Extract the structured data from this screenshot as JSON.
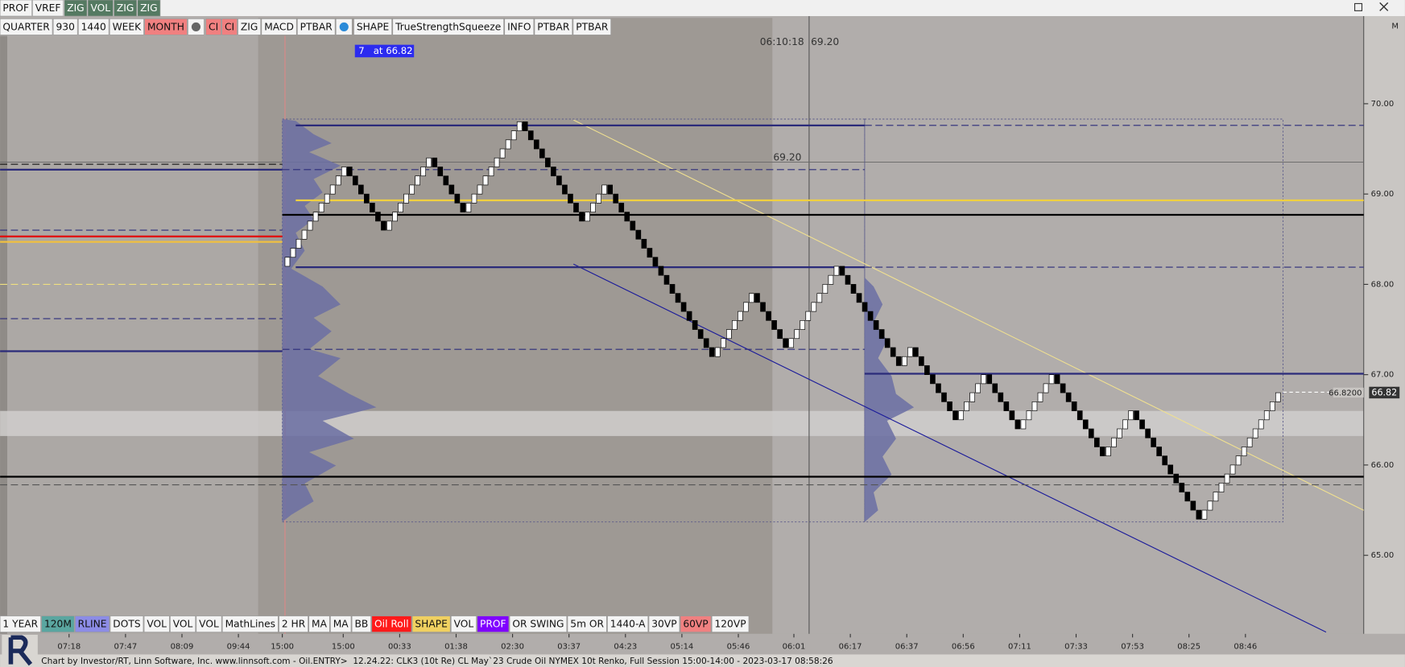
{
  "toolbar_top": [
    {
      "label": "PROF",
      "color": "#f4f4f4"
    },
    {
      "label": "VREF",
      "color": "#f4f4f4"
    },
    {
      "label": "ZIG",
      "color": "#557a62"
    },
    {
      "label": "VOL",
      "color": "#557a62"
    },
    {
      "label": "ZIG",
      "color": "#557a62"
    },
    {
      "label": "ZIG",
      "color": "#557a62"
    }
  ],
  "toolbar_second": [
    {
      "label": "QUARTER",
      "color": "#f4f4f4"
    },
    {
      "label": "930",
      "color": "#f4f4f4"
    },
    {
      "label": "1440",
      "color": "#f4f4f4"
    },
    {
      "label": "WEEK",
      "color": "#f4f4f4"
    },
    {
      "label": "MONTH",
      "color": "#f08080"
    },
    {
      "label": "CI",
      "color": "#f08080"
    },
    {
      "label": "CI",
      "color": "#f08080"
    },
    {
      "label": "ZIG",
      "color": "#f4f4f4"
    },
    {
      "label": "MACD",
      "color": "#f4f4f4"
    },
    {
      "label": "PTBAR",
      "color": "#f4f4f4"
    },
    {
      "label": "SHAPE",
      "color": "#f4f4f4"
    },
    {
      "label": "TrueStrengthSqueeze",
      "color": "#f4f4f4"
    },
    {
      "label": "INFO",
      "color": "#f4f4f4"
    },
    {
      "label": "PTBAR",
      "color": "#f4f4f4"
    },
    {
      "label": "PTBAR",
      "color": "#f4f4f4"
    }
  ],
  "toolbar_bottom": [
    {
      "label": "1 YEAR",
      "color": "#f4f4f4"
    },
    {
      "label": "120M",
      "color": "#5aa6a0"
    },
    {
      "label": "RLINE",
      "color": "#8c8ce6"
    },
    {
      "label": "DOTS",
      "color": "#f4f4f4"
    },
    {
      "label": "VOL",
      "color": "#f4f4f4"
    },
    {
      "label": "VOL",
      "color": "#f4f4f4"
    },
    {
      "label": "VOL",
      "color": "#f4f4f4"
    },
    {
      "label": "MathLines",
      "color": "#f4f4f4"
    },
    {
      "label": "2 HR",
      "color": "#f4f4f4"
    },
    {
      "label": "MA",
      "color": "#f4f4f4"
    },
    {
      "label": "MA",
      "color": "#f4f4f4"
    },
    {
      "label": "BB",
      "color": "#f4f4f4"
    },
    {
      "label": "Oil Roll",
      "color": "#ff1a1a"
    },
    {
      "label": "SHAPE",
      "color": "#f0d060"
    },
    {
      "label": "VOL",
      "color": "#f4f4f4"
    },
    {
      "label": "PROF",
      "color": "#8000ff"
    },
    {
      "label": "OR SWING",
      "color": "#f4f4f4"
    },
    {
      "label": "5m OR",
      "color": "#f4f4f4"
    },
    {
      "label": "1440-A",
      "color": "#f4f4f4"
    },
    {
      "label": "30VP",
      "color": "#f4f4f4"
    },
    {
      "label": "60VP",
      "color": "#f08080"
    },
    {
      "label": "120VP",
      "color": "#f4f4f4"
    }
  ],
  "corner_label": "M",
  "status_bar": "Chart by Investor/RT, Linn Software, Inc. www.linnsoft.com - Oil.ENTRY>  12.24.22: CLK3 (10t Re) CL May`23 Crude Oil NYMEX 10t Renko, Full Session 15:00-14:00 - 2023-03-17 08:58:26",
  "chart_data": {
    "type": "renko",
    "up_color": "#ffffff",
    "down_color": "#000000",
    "bricks": [
      68.3,
      68.4,
      68.5,
      68.6,
      68.7,
      68.8,
      68.9,
      69.0,
      69.1,
      69.2,
      69.3,
      69.2,
      69.1,
      69.0,
      68.9,
      68.8,
      68.7,
      68.6,
      68.7,
      68.8,
      68.9,
      69.0,
      69.1,
      69.2,
      69.3,
      69.4,
      69.3,
      69.2,
      69.1,
      69.0,
      68.9,
      68.8,
      68.9,
      69.0,
      69.1,
      69.2,
      69.3,
      69.4,
      69.5,
      69.6,
      69.7,
      69.8,
      69.7,
      69.6,
      69.5,
      69.4,
      69.3,
      69.2,
      69.1,
      69.0,
      68.9,
      68.8,
      68.7,
      68.8,
      68.9,
      69.0,
      69.1,
      69.0,
      68.9,
      68.8,
      68.7,
      68.6,
      68.5,
      68.4,
      68.3,
      68.2,
      68.1,
      68.0,
      67.9,
      67.8,
      67.7,
      67.6,
      67.5,
      67.4,
      67.3,
      67.2,
      67.3,
      67.4,
      67.5,
      67.6,
      67.7,
      67.8,
      67.9,
      67.8,
      67.7,
      67.6,
      67.5,
      67.4,
      67.3,
      67.4,
      67.5,
      67.6,
      67.7,
      67.8,
      67.9,
      68.0,
      68.1,
      68.2,
      68.1,
      68.0,
      67.9,
      67.8,
      67.7,
      67.6,
      67.5,
      67.4,
      67.3,
      67.2,
      67.1,
      67.2,
      67.3,
      67.2,
      67.1,
      67.0,
      66.9,
      66.8,
      66.7,
      66.6,
      66.5,
      66.6,
      66.7,
      66.8,
      66.9,
      67.0,
      66.9,
      66.8,
      66.7,
      66.6,
      66.5,
      66.4,
      66.5,
      66.6,
      66.7,
      66.8,
      66.9,
      67.0,
      66.9,
      66.8,
      66.7,
      66.6,
      66.5,
      66.4,
      66.3,
      66.2,
      66.1,
      66.2,
      66.3,
      66.4,
      66.5,
      66.6,
      66.5,
      66.4,
      66.3,
      66.2,
      66.1,
      66.0,
      65.9,
      65.8,
      65.7,
      65.6,
      65.5,
      65.4,
      65.5,
      65.6,
      65.7,
      65.8,
      65.9,
      66.0,
      66.1,
      66.2,
      66.3,
      66.4,
      66.5,
      66.6,
      66.7,
      66.8
    ],
    "ylim": [
      64.13,
      70.97
    ],
    "yticks": [
      {
        "value": 65,
        "label": "65.00"
      },
      {
        "value": 66,
        "label": "66.00"
      },
      {
        "value": 67,
        "label": "67.00"
      },
      {
        "value": 68,
        "label": "68.00"
      },
      {
        "value": 69,
        "label": "69.00"
      },
      {
        "value": 70,
        "label": "70.00"
      }
    ],
    "time_labels": [
      "07:18",
      "07:47",
      "08:09",
      "09:44",
      "15:00",
      "15:00",
      "00:33",
      "01:38",
      "02:30",
      "03:37",
      "04:23",
      "05:14",
      "05:46",
      "06:01",
      "06:17",
      "06:37",
      "06:56",
      "07:11",
      "07:33",
      "07:53",
      "08:25",
      "08:46"
    ],
    "levels": [
      {
        "price": 69.76,
        "color": "#2b2b7a",
        "dash": false,
        "width": 2
      },
      {
        "price": 69.76,
        "color": "#2b2b7a",
        "dash": true,
        "width": 1
      },
      {
        "price": 69.33,
        "color": "#000000",
        "dash": true,
        "width": 1
      },
      {
        "price": 69.27,
        "color": "#2b2b7a",
        "dash": false,
        "width": 2
      },
      {
        "price": 69.27,
        "color": "#2b2b7a",
        "dash": true,
        "width": 1
      },
      {
        "price": 68.93,
        "color": "#f0d040",
        "dash": false,
        "width": 2
      },
      {
        "price": 68.77,
        "color": "#000000",
        "dash": false,
        "width": 2
      },
      {
        "price": 68.6,
        "color": "#2b2b7a",
        "dash": true,
        "width": 1
      },
      {
        "price": 68.53,
        "color": "#e00000",
        "dash": false,
        "width": 2
      },
      {
        "price": 68.47,
        "color": "#f0c040",
        "dash": false,
        "width": 2
      },
      {
        "price": 68.19,
        "color": "#2b2b7a",
        "dash": false,
        "width": 2
      },
      {
        "price": 68.19,
        "color": "#2b2b7a",
        "dash": true,
        "width": 1
      },
      {
        "price": 67.28,
        "color": "#2b2b7a",
        "dash": true,
        "width": 1
      },
      {
        "price": 67.26,
        "color": "#2b2b7a",
        "dash": false,
        "width": 2
      },
      {
        "price": 67.01,
        "color": "#2b2b7a",
        "dash": false,
        "width": 2
      },
      {
        "price": 65.87,
        "color": "#000000",
        "dash": false,
        "width": 2
      },
      {
        "price": 65.78,
        "color": "#555555",
        "dash": true,
        "width": 1
      },
      {
        "price": 67.62,
        "color": "#2b2b7a",
        "dash": true,
        "width": 1
      },
      {
        "price": 68.0,
        "color": "#f0e080",
        "dash": true,
        "width": 1
      }
    ],
    "annotations": {
      "order": "7   at 66.82",
      "clock": "06:10:18",
      "clock_price": "69.20",
      "level_label": "69.20",
      "last_price_full": "66.8200",
      "last_price": "66.82"
    }
  }
}
